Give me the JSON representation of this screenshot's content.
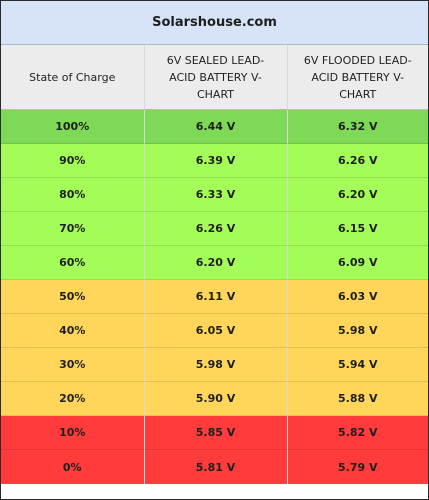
{
  "site_title": "Solarshouse.com",
  "headers": {
    "state_of_charge": "State of Charge",
    "sealed": "6V SEALED LEAD-ACID BATTERY V-CHART",
    "flooded": "6V FLOODED LEAD-ACID BATTERY V-CHART"
  },
  "rows": [
    {
      "soc": "100%",
      "sealed": "6.44 V",
      "flooded": "6.32 V",
      "color": "#7ed957"
    },
    {
      "soc": "90%",
      "sealed": "6.39 V",
      "flooded": "6.26 V",
      "color": "#a3fc58"
    },
    {
      "soc": "80%",
      "sealed": "6.33 V",
      "flooded": "6.20 V",
      "color": "#a3fc58"
    },
    {
      "soc": "70%",
      "sealed": "6.26 V",
      "flooded": "6.15 V",
      "color": "#a3fc58"
    },
    {
      "soc": "60%",
      "sealed": "6.20 V",
      "flooded": "6.09 V",
      "color": "#a3fc58"
    },
    {
      "soc": "50%",
      "sealed": "6.11 V",
      "flooded": "6.03 V",
      "color": "#ffd65a"
    },
    {
      "soc": "40%",
      "sealed": "6.05 V",
      "flooded": "5.98 V",
      "color": "#ffd65a"
    },
    {
      "soc": "30%",
      "sealed": "5.98 V",
      "flooded": "5.94 V",
      "color": "#ffd65a"
    },
    {
      "soc": "20%",
      "sealed": "5.90 V",
      "flooded": "5.88 V",
      "color": "#ffd65a"
    },
    {
      "soc": "10%",
      "sealed": "5.85 V",
      "flooded": "5.82 V",
      "color": "#ff3b3b"
    },
    {
      "soc": "0%",
      "sealed": "5.81 V",
      "flooded": "5.79 V",
      "color": "#ff3b3b"
    }
  ]
}
